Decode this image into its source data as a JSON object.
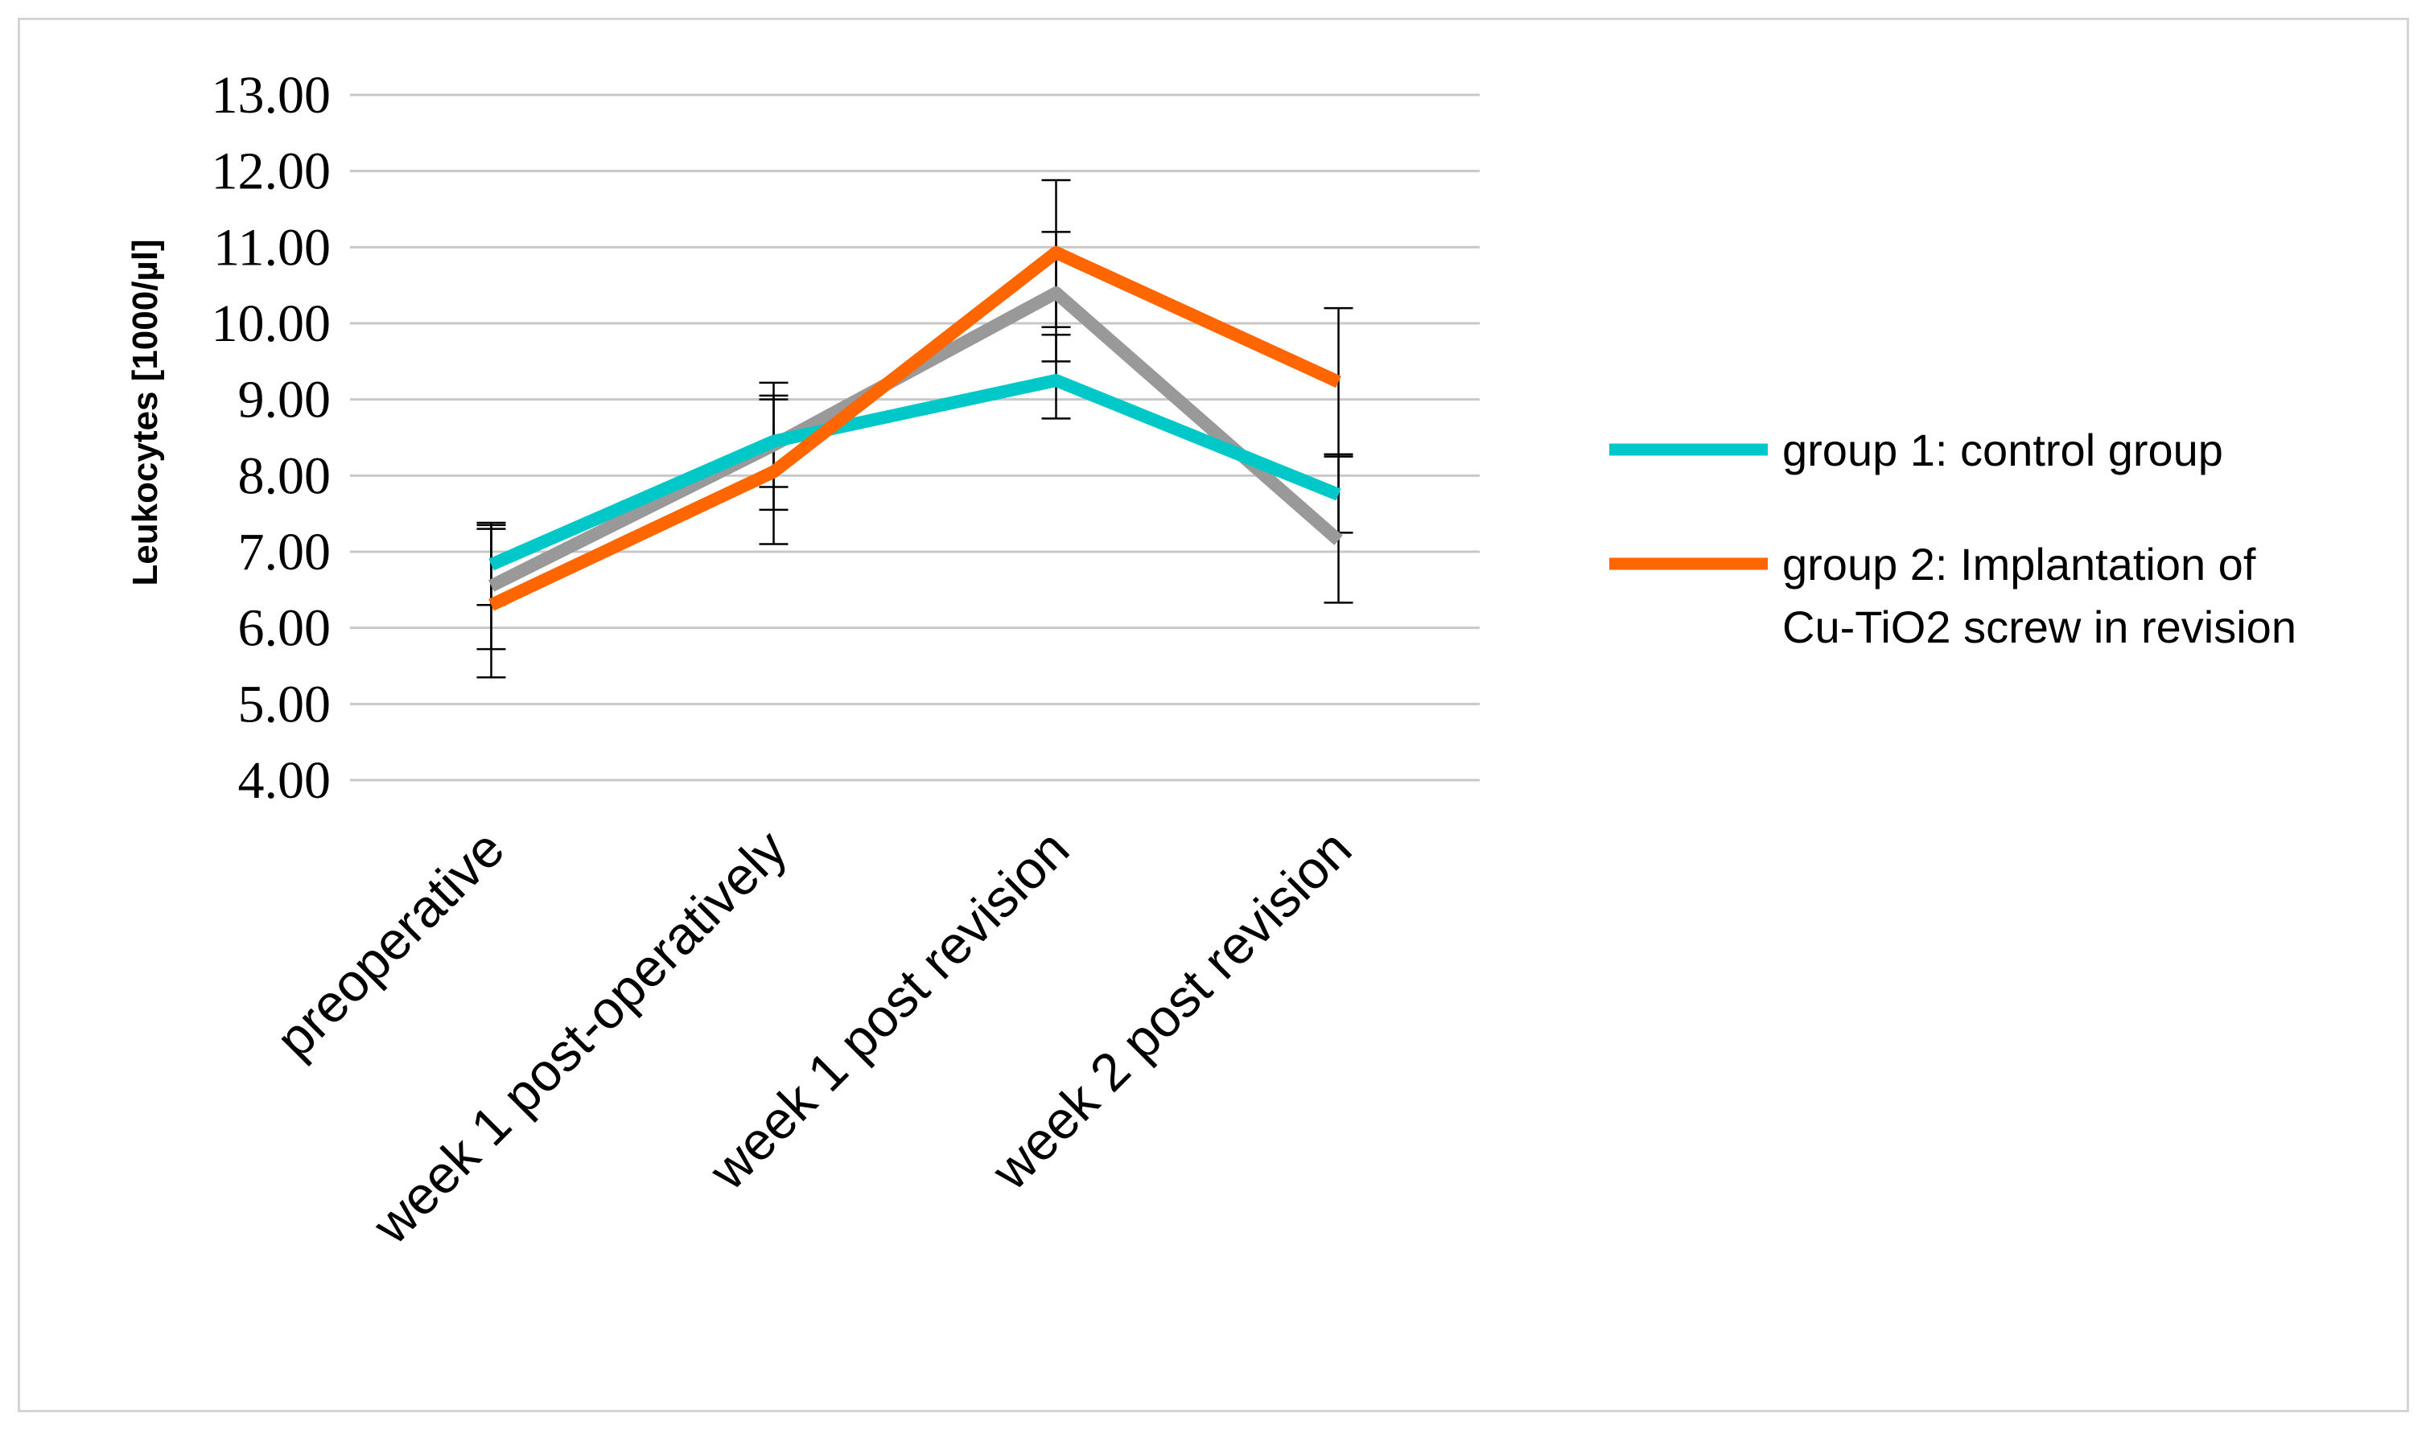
{
  "chart_data": {
    "type": "line",
    "title": "",
    "xlabel": "",
    "ylabel": "Leukocytes [1000/µl]",
    "ylim": [
      4.0,
      13.0
    ],
    "yticks": [
      4.0,
      5.0,
      6.0,
      7.0,
      8.0,
      9.0,
      10.0,
      11.0,
      12.0,
      13.0
    ],
    "ytick_labels": [
      "4.00",
      "5.00",
      "6.00",
      "7.00",
      "8.00",
      "9.00",
      "10.00",
      "11.00",
      "12.00",
      "13.00"
    ],
    "grid": true,
    "legend_position": "right",
    "categories": [
      "preoperative",
      "week 1 post-operatively",
      "week 1 post revision",
      "week 2 post revision"
    ],
    "series": [
      {
        "name": "group 1: control group",
        "color": "#00c8c8",
        "in_legend": true,
        "values": [
          6.83,
          8.45,
          9.25,
          7.75
        ],
        "error_low": [
          6.3,
          7.85,
          8.75,
          7.25
        ],
        "error_high": [
          7.35,
          9.05,
          9.85,
          8.25
        ]
      },
      {
        "name": "group 2: Implantation of Cu-TiO2 screw in revision",
        "legend_lines": [
          "group 2: Implantation of",
          "Cu-TiO2 screw in revision"
        ],
        "color": "#ff6600",
        "in_legend": true,
        "values": [
          6.3,
          8.05,
          10.93,
          9.23
        ],
        "error_low": [
          5.35,
          7.1,
          9.95,
          8.25
        ],
        "error_high": [
          7.3,
          9.0,
          11.88,
          10.2
        ]
      },
      {
        "name": "",
        "color": "#999999",
        "in_legend": false,
        "values": [
          6.55,
          8.4,
          10.4,
          7.15
        ],
        "error_low": [
          5.72,
          7.55,
          9.5,
          6.33
        ],
        "error_high": [
          7.38,
          9.22,
          11.2,
          8.28
        ]
      }
    ]
  }
}
